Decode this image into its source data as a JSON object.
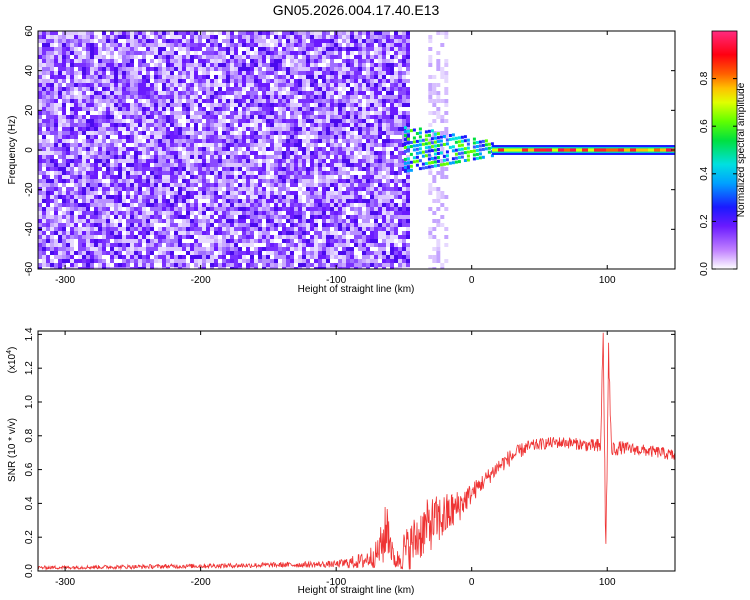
{
  "figure_title": "GN05.2026.004.17.40.E13",
  "chart_data": [
    {
      "type": "heatmap",
      "title": "GN05.2026.004.17.40.E13",
      "xlabel": "Height of straight line (km)",
      "ylabel": "Frequency (Hz)",
      "xlim": [
        -320,
        150
      ],
      "ylim": [
        -60,
        60
      ],
      "x_ticks": [
        -300,
        -200,
        -100,
        0,
        100
      ],
      "x_tick_labels": [
        "-300",
        "-200",
        "-100",
        "0",
        "100"
      ],
      "y_ticks": [
        -60,
        -40,
        -20,
        0,
        20,
        40,
        60
      ],
      "y_tick_labels": [
        "-60",
        "-40",
        "-20",
        "0",
        "20",
        "40",
        "60"
      ],
      "colorbar": {
        "label": "Normalized spectral amplitude",
        "range": [
          0,
          1
        ],
        "ticks": [
          0.0,
          0.2,
          0.4,
          0.6,
          0.8
        ],
        "tick_labels": [
          "0.0",
          "0.2",
          "0.4",
          "0.6",
          "0.8"
        ]
      },
      "regions": [
        {
          "name": "broadband noise",
          "x_range": [
            -320,
            -48
          ],
          "freq_range": [
            -60,
            60
          ],
          "amplitude": 0.15
        },
        {
          "name": "noise strip",
          "x_range": [
            -32,
            -20
          ],
          "freq_range": [
            -60,
            60
          ],
          "amplitude": 0.08
        },
        {
          "name": "transition",
          "x_range": [
            -50,
            15
          ],
          "freq_range": [
            -5,
            10
          ],
          "amplitude": 0.45
        },
        {
          "name": "dc line",
          "x_range": [
            15,
            150
          ],
          "freq_range": [
            -1,
            1
          ],
          "amplitude": 0.95
        }
      ]
    },
    {
      "type": "line",
      "xlabel": "Height of straight line (km)",
      "ylabel": "SNR (10 * v/v)",
      "y_multiplier": "(x10",
      "y_multiplier_exp": "4",
      "y_multiplier_close": ")",
      "xlim": [
        -320,
        150
      ],
      "ylim": [
        0,
        1.42
      ],
      "x_ticks": [
        -300,
        -200,
        -100,
        0,
        100
      ],
      "x_tick_labels": [
        "-300",
        "-200",
        "-100",
        "0",
        "100"
      ],
      "y_ticks": [
        0,
        0.2,
        0.4,
        0.6,
        0.8,
        1.0,
        1.2,
        1.4
      ],
      "y_tick_labels": [
        "0.0",
        "0.2",
        "0.4",
        "0.6",
        "0.8",
        "1.0",
        "1.2",
        "1.4"
      ],
      "series": [
        {
          "name": "SNR",
          "color": "#ee3333",
          "x": [
            -320,
            -250,
            -150,
            -100,
            -80,
            -70,
            -65,
            -62,
            -58,
            -55,
            -50,
            -45,
            -40,
            -35,
            -30,
            -25,
            -20,
            -15,
            -10,
            -5,
            0,
            10,
            20,
            30,
            40,
            50,
            60,
            70,
            80,
            90,
            95,
            97,
            99,
            101,
            103,
            110,
            120,
            130,
            140,
            150
          ],
          "values": [
            0.02,
            0.025,
            0.035,
            0.04,
            0.06,
            0.1,
            0.18,
            0.28,
            0.08,
            0.06,
            0.12,
            0.15,
            0.2,
            0.25,
            0.28,
            0.3,
            0.32,
            0.35,
            0.38,
            0.42,
            0.46,
            0.54,
            0.62,
            0.68,
            0.73,
            0.75,
            0.76,
            0.76,
            0.75,
            0.74,
            0.73,
            1.38,
            0.1,
            1.3,
            0.72,
            0.73,
            0.72,
            0.71,
            0.7,
            0.68
          ],
          "noise": [
            0.01,
            0.012,
            0.015,
            0.02,
            0.05,
            0.08,
            0.15,
            0.2,
            0.06,
            0.06,
            0.12,
            0.14,
            0.16,
            0.16,
            0.16,
            0.15,
            0.14,
            0.12,
            0.1,
            0.08,
            0.06,
            0.05,
            0.05,
            0.05,
            0.04,
            0.035,
            0.035,
            0.035,
            0.035,
            0.04,
            0.06,
            0.1,
            0.1,
            0.1,
            0.05,
            0.04,
            0.035,
            0.035,
            0.035,
            0.035
          ]
        }
      ]
    }
  ]
}
